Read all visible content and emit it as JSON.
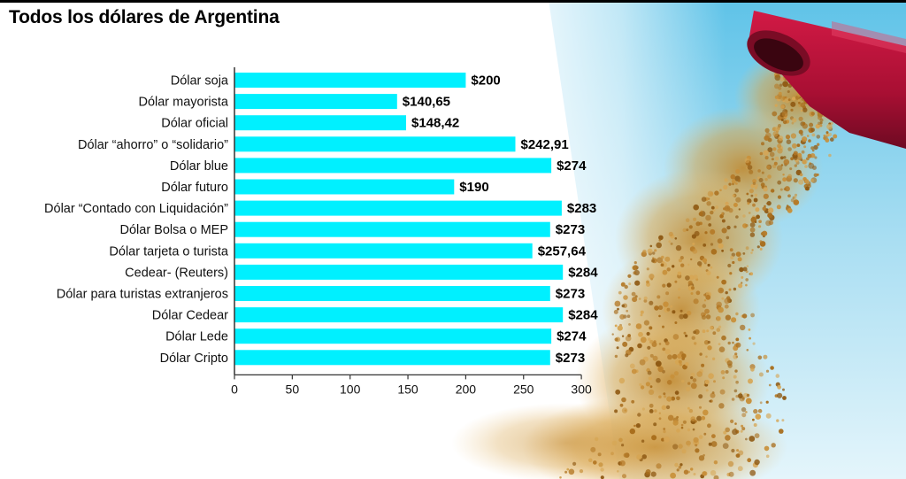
{
  "title": "Todos los dólares de Argentina",
  "colors": {
    "bar": "#00f0ff",
    "axis": "#333333"
  },
  "decoration": {
    "photo": "soybeans pouring from a red harvester spout against a blue sky"
  },
  "chart_data": {
    "type": "bar",
    "orientation": "horizontal",
    "title": "Todos los dólares de Argentina",
    "xlabel": "",
    "ylabel": "",
    "xlim": [
      0,
      300
    ],
    "xticks": [
      0,
      50,
      100,
      150,
      200,
      250,
      300
    ],
    "grid": false,
    "categories": [
      "Dólar soja",
      "Dólar mayorista",
      "Dólar oficial",
      "Dólar “ahorro” o “solidario”",
      "Dólar blue",
      "Dólar futuro",
      "Dólar “Contado con Liquidación”",
      "Dólar Bolsa o MEP",
      "Dólar tarjeta o turista",
      "Cedear- (Reuters)",
      "Dólar para turistas extranjeros",
      "Dólar Cedear",
      "Dólar Lede",
      "Dólar Cripto"
    ],
    "values": [
      200,
      140.65,
      148.42,
      242.91,
      274,
      190,
      283,
      273,
      257.64,
      284,
      273,
      284,
      274,
      273
    ],
    "value_labels": [
      "$200",
      "$140,65",
      "$148,42",
      "$242,91",
      "$274",
      "$190",
      "$283",
      "$273",
      "$257,64",
      "$284",
      "$273",
      "$284",
      "$274",
      "$273"
    ]
  }
}
